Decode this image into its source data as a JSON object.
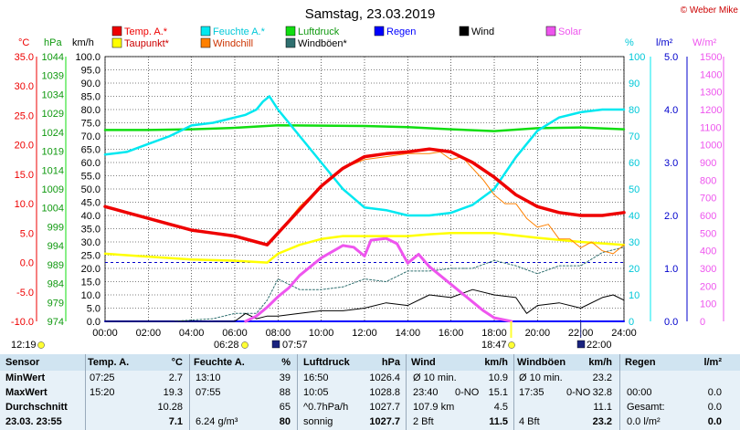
{
  "page": {
    "title": "Samstag, 23.03.2019",
    "copyright": "© Weber Mike"
  },
  "colors": {
    "temp": "#ee0000",
    "dew": "#ffff00",
    "humidity": "#00e8f0",
    "windchill": "#ff8000",
    "pressure": "#11dd11",
    "windgust": "#2f6f6f",
    "rain": "#0000ff",
    "wind": "#000000",
    "solar": "#ee55ee",
    "grid": "#000000",
    "dashed": "#0000cc"
  },
  "legend": [
    {
      "label": "Temp. A.*",
      "color": "#ee0000",
      "text_color": "#ee0000"
    },
    {
      "label": "Feuchte A.*",
      "color": "#00e8f0",
      "text_color": "#00c8d8"
    },
    {
      "label": "Luftdruck",
      "color": "#11dd11",
      "text_color": "#109910"
    },
    {
      "label": "Regen",
      "color": "#0000ff",
      "text_color": "#0000ff"
    },
    {
      "label": "Wind",
      "color": "#000000",
      "text_color": "#000000"
    },
    {
      "label": "Solar",
      "color": "#ee55ee",
      "text_color": "#ee55ee"
    },
    {
      "label": "Taupunkt*",
      "color": "#ffff00",
      "text_color": "#cc0000"
    },
    {
      "label": "Windchill",
      "color": "#ff8000",
      "text_color": "#cc3300"
    },
    {
      "label": "Windböen*",
      "color": "#2f6f6f",
      "text_color": "#000000"
    }
  ],
  "axes": {
    "temp": {
      "unit": "°C",
      "ticks": [
        "35.0",
        "30.0",
        "25.0",
        "20.0",
        "15.0",
        "10.0",
        "5.0",
        "0.0",
        "-5.0",
        "-10.0"
      ]
    },
    "pressure": {
      "unit": "hPa",
      "ticks": [
        "1044",
        "1039",
        "1034",
        "1029",
        "1024",
        "1019",
        "1014",
        "1009",
        "1004",
        "999",
        "994",
        "989",
        "984",
        "979",
        "974"
      ]
    },
    "wind": {
      "unit": "km/h",
      "ticks": [
        "100.0",
        "95.0",
        "90.0",
        "85.0",
        "80.0",
        "75.0",
        "70.0",
        "65.0",
        "60.0",
        "55.0",
        "50.0",
        "45.0",
        "40.0",
        "35.0",
        "30.0",
        "25.0",
        "20.0",
        "15.0",
        "10.0",
        "5.0",
        "0.0"
      ]
    },
    "humidity": {
      "unit": "%",
      "ticks": [
        "100",
        "90",
        "80",
        "70",
        "60",
        "50",
        "40",
        "30",
        "20",
        "10",
        "0"
      ]
    },
    "rain": {
      "unit": "l/m²",
      "ticks": [
        "5.0",
        "4.0",
        "3.0",
        "2.0",
        "1.0",
        "0.0"
      ]
    },
    "solar": {
      "unit": "W/m²",
      "ticks": [
        "1500",
        "1400",
        "1300",
        "1200",
        "1100",
        "1000",
        "900",
        "800",
        "700",
        "600",
        "500",
        "400",
        "300",
        "200",
        "100",
        "0"
      ]
    },
    "time": {
      "ticks": [
        "00:00",
        "02:00",
        "04:00",
        "06:00",
        "08:00",
        "10:00",
        "12:00",
        "14:00",
        "16:00",
        "18:00",
        "20:00",
        "22:00",
        "24:00"
      ]
    }
  },
  "events": {
    "moonset": "12:19",
    "sunrise": "06:28",
    "dawn": "07:57",
    "sunset": "18:47",
    "moonrise": "22:00"
  },
  "chart_data": {
    "type": "line",
    "x_unit": "hours",
    "xlim": [
      0,
      24
    ],
    "series": [
      {
        "name": "Temp. A.*",
        "axis": "temp",
        "x": [
          0,
          1,
          2,
          3,
          4,
          5,
          6,
          7,
          7.5,
          8,
          9,
          10,
          11,
          12,
          13,
          14,
          15,
          16,
          17,
          18,
          19,
          20,
          21,
          22,
          23,
          24
        ],
        "values": [
          9.5,
          8.5,
          7.5,
          6.5,
          5.5,
          5.0,
          4.5,
          3.5,
          3.0,
          5.0,
          9.0,
          13.0,
          16.0,
          18.0,
          18.5,
          18.8,
          19.3,
          18.8,
          17.0,
          14.5,
          11.5,
          9.5,
          8.5,
          8.0,
          8.0,
          8.5
        ]
      },
      {
        "name": "Taupunkt*",
        "axis": "temp",
        "x": [
          0,
          2,
          4,
          6,
          7.5,
          8,
          9,
          10,
          11,
          12,
          14,
          15,
          16,
          18,
          20,
          22,
          24
        ],
        "values": [
          1.5,
          1.0,
          0.5,
          0.3,
          0.0,
          1.5,
          3.0,
          4.0,
          4.5,
          4.5,
          4.5,
          4.8,
          5.0,
          5.0,
          4.2,
          3.5,
          3.0
        ]
      },
      {
        "name": "Windchill",
        "axis": "temp",
        "x": [
          8,
          9,
          10,
          11,
          12,
          13,
          14,
          15,
          15.5,
          16,
          16.5,
          17,
          17.5,
          18,
          18.5,
          19,
          19.5,
          20,
          20.5,
          21,
          21.5,
          22,
          22.5,
          23,
          23.5,
          24
        ],
        "values": [
          5.0,
          9.5,
          13.0,
          16.0,
          17.5,
          18.0,
          18.5,
          18.5,
          18.8,
          17.5,
          18.0,
          16.0,
          14.0,
          11.5,
          10.0,
          10.0,
          7.5,
          6.0,
          6.5,
          4.0,
          4.0,
          2.5,
          3.5,
          2.0,
          1.5,
          3.0
        ]
      },
      {
        "name": "Feuchte A.*",
        "axis": "humidity",
        "x": [
          0,
          1,
          2,
          3,
          4,
          5,
          6,
          6.5,
          7,
          7.3,
          7.6,
          8,
          9,
          10,
          11,
          12,
          13,
          14,
          15,
          16,
          17,
          18,
          19,
          20,
          21,
          22,
          23,
          24
        ],
        "values": [
          63,
          64,
          67,
          70,
          74,
          75,
          77,
          78,
          80,
          83,
          85,
          80,
          70,
          60,
          50,
          43,
          42,
          40,
          40,
          41,
          44,
          50,
          62,
          72,
          77,
          79,
          80,
          80
        ]
      },
      {
        "name": "Luftdruck",
        "axis": "pressure",
        "x": [
          0,
          2,
          4,
          6,
          8,
          10,
          12,
          14,
          16,
          18,
          20,
          22,
          24
        ],
        "values": [
          1026.4,
          1026.4,
          1026.6,
          1027.0,
          1027.7,
          1027.6,
          1027.5,
          1027.2,
          1026.6,
          1026.1,
          1026.9,
          1027.1,
          1026.6
        ]
      },
      {
        "name": "Solar",
        "axis": "solar",
        "x": [
          6.5,
          7,
          7.5,
          8,
          8.5,
          9,
          10,
          11,
          11.5,
          12,
          12.3,
          13,
          13.5,
          14,
          14.5,
          15,
          15.5,
          16,
          17,
          17.5,
          18,
          18.8
        ],
        "values": [
          0,
          30,
          80,
          140,
          190,
          260,
          360,
          430,
          420,
          370,
          460,
          470,
          440,
          330,
          380,
          310,
          260,
          210,
          110,
          60,
          20,
          0
        ]
      },
      {
        "name": "Wind",
        "axis": "wind",
        "x": [
          0,
          6,
          6.5,
          7,
          7.5,
          8,
          9,
          10,
          11,
          12,
          13,
          14,
          15,
          16,
          17,
          18,
          19,
          19.5,
          20,
          21,
          22,
          23,
          23.5,
          24
        ],
        "values": [
          0,
          0,
          3,
          1,
          2,
          2,
          3,
          4,
          4,
          5,
          7,
          6,
          10,
          9,
          12,
          10,
          9,
          3,
          6,
          7,
          5,
          9,
          10,
          8
        ]
      },
      {
        "name": "Windböen*",
        "axis": "wind",
        "x": [
          0,
          3,
          5,
          6,
          7,
          7.5,
          8,
          9,
          10,
          11,
          12,
          13,
          14,
          15,
          16,
          17,
          18,
          19,
          20,
          21,
          22,
          23,
          24
        ],
        "values": [
          0,
          0,
          1,
          3,
          3,
          8,
          16,
          12,
          12,
          13,
          16,
          15,
          19,
          19,
          20,
          20,
          23,
          21,
          18,
          21,
          21,
          26,
          28
        ]
      },
      {
        "name": "Regen",
        "axis": "rain",
        "x": [
          0,
          24
        ],
        "values": [
          0.0,
          0.0
        ]
      }
    ],
    "reference_line": {
      "axis": "temp",
      "value": 0.0,
      "style": "dashed"
    }
  },
  "footer": {
    "headers": {
      "sensor": "Sensor",
      "temp": "Temp. A.",
      "temp_unit": "°C",
      "hum": "Feuchte A.",
      "hum_unit": "%",
      "press": "Luftdruck",
      "press_unit": "hPa",
      "wind": "Wind",
      "wind_unit": "km/h",
      "gust": "Windböen",
      "gust_unit": "km/h",
      "rain": "Regen",
      "rain_unit": "l/m²"
    },
    "rows": [
      {
        "label": "MinWert",
        "t_time": "07:25",
        "t_val": "2.7",
        "h_time": "13:10",
        "h_val": "39",
        "p_time": "16:50",
        "p_val": "1026.4",
        "w_time": "Ø 10 min.",
        "w_dir": "",
        "w_val": "10.9",
        "g_time": "Ø 10 min.",
        "g_dir": "",
        "g_val": "23.2",
        "r_time": "",
        "r_val": ""
      },
      {
        "label": "MaxWert",
        "t_time": "15:20",
        "t_val": "19.3",
        "h_time": "07:55",
        "h_val": "88",
        "p_time": "10:05",
        "p_val": "1028.8",
        "w_time": "23:40",
        "w_dir": "0-NO",
        "w_val": "15.1",
        "g_time": "17:35",
        "g_dir": "0-NO",
        "g_val": "32.8",
        "r_time": "00:00",
        "r_val": "0.0"
      },
      {
        "label": "Durchschnitt",
        "t_time": "",
        "t_val": "10.28",
        "h_time": "",
        "h_val": "65",
        "p_time": "^0.7hPa/h",
        "p_val": "1027.7",
        "w_time": "107.9 km",
        "w_dir": "",
        "w_val": "4.5",
        "g_time": "",
        "g_dir": "",
        "g_val": "11.1",
        "r_time": "Gesamt:",
        "r_val": "0.0"
      },
      {
        "label": "23.03. 23:55",
        "t_time": "",
        "t_val": "7.1",
        "h_time": "6.24 g/m³",
        "h_val": "80",
        "p_time": "sonnig",
        "p_val": "1027.7",
        "w_time": "2 Bft",
        "w_dir": "",
        "w_val": "11.5",
        "g_time": "4 Bft",
        "g_dir": "",
        "g_val": "23.2",
        "r_time": "0.0 l/m²",
        "r_val": "0.0"
      }
    ]
  }
}
